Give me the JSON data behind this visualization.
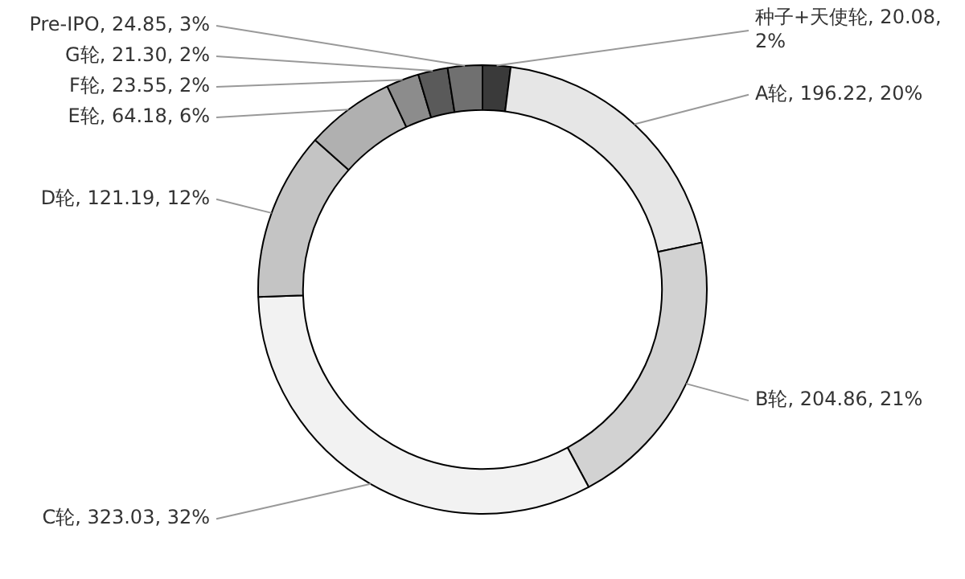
{
  "chart_data": {
    "type": "donut",
    "categories": [
      "种子+天使轮",
      "A轮",
      "B轮",
      "C轮",
      "D轮",
      "E轮",
      "F轮",
      "G轮",
      "Pre-IPO"
    ],
    "values": [
      20.08,
      196.22,
      204.86,
      323.03,
      121.19,
      64.18,
      23.55,
      21.3,
      24.85
    ],
    "value_labels": [
      "20.08, 2%",
      "196.22, 20%",
      "204.86, 21%",
      "323.03, 32%",
      "121.19, 12%",
      "64.18, 6%",
      "23.55, 2%",
      "21.30, 2%",
      "24.85, 3%"
    ],
    "colors": [
      "#3a3a3a",
      "#e6e6e6",
      "#d2d2d2",
      "#f2f2f2",
      "#c4c4c4",
      "#b0b0b0",
      "#8c8c8c",
      "#5a5a5a",
      "#707070"
    ],
    "legend": false
  }
}
